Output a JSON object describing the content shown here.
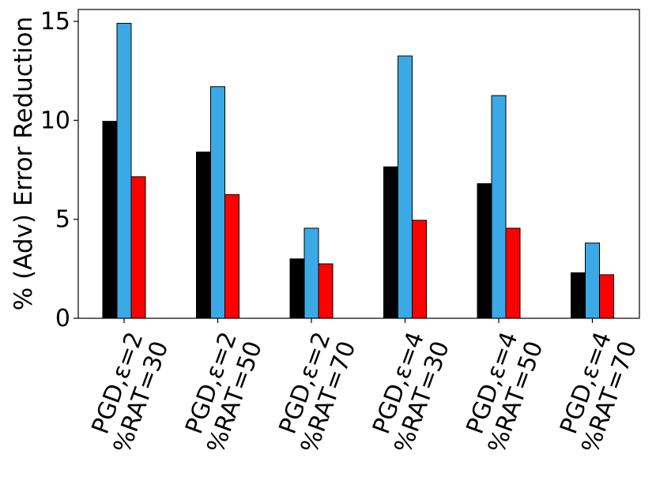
{
  "chart_data": {
    "type": "bar",
    "title": "",
    "xlabel": "",
    "ylabel": "% (Adv) Error Reduction",
    "ylim": [
      0,
      15.6
    ],
    "yticks": [
      0,
      5,
      10,
      15
    ],
    "grid": false,
    "legend": "none",
    "categories": [
      [
        "PGD,ε=2",
        "%RAT=30"
      ],
      [
        "PGD,ε=2",
        "%RAT=50"
      ],
      [
        "PGD,ε=2",
        "%RAT=70"
      ],
      [
        "PGD,ε=4",
        "%RAT=30"
      ],
      [
        "PGD,ε=4",
        "%RAT=50"
      ],
      [
        "PGD,ε=4",
        "%RAT=70"
      ]
    ],
    "series": [
      {
        "color": "#000000",
        "values": [
          9.95,
          8.4,
          3.0,
          7.65,
          6.8,
          2.3
        ]
      },
      {
        "color": "#3ba9e6",
        "values": [
          14.9,
          11.7,
          4.55,
          13.25,
          11.25,
          3.8
        ]
      },
      {
        "color": "#ff0000",
        "values": [
          7.15,
          6.25,
          2.75,
          4.95,
          4.55,
          2.2
        ]
      }
    ]
  }
}
